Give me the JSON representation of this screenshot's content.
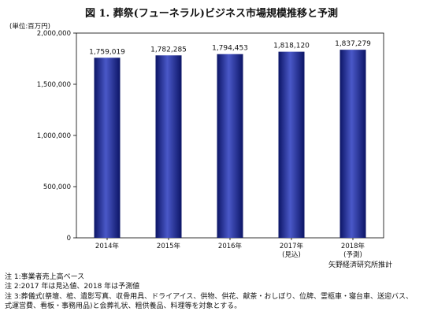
{
  "title": "図 1. 葬祭(フューネラル)ビジネス市場規模推移と予測",
  "unit": "(単位:百万円)",
  "source": "矢野経済研究所推計",
  "notes": [
    "注 1:事業者売上高ベース",
    "注 2:2017 年は見込値、2018 年は予測値",
    "注 3:葬儀式(祭壇、棺、遺影写真、収骨用具、ドライアイス、供物、供花、献茶・おしぼり、位牌、霊柩車・寝台車、送迎バス、",
    "式運営費、看板・事務用品)と会葬礼状、粗供養品、料理等を対象とする。"
  ],
  "colors": {
    "bar": "#1b2a9c",
    "bar_light": "#4a58c8",
    "bar_dark": "#0c1566",
    "axis": "#000000"
  },
  "chart_data": {
    "type": "bar",
    "categories": [
      "2014年",
      "2015年",
      "2016年",
      "2017年",
      "2018年"
    ],
    "sub_labels": [
      "",
      "",
      "",
      "(見込)",
      "(予測)"
    ],
    "values": [
      1759019,
      1782285,
      1794453,
      1818120,
      1837279
    ],
    "value_labels": [
      "1,759,019",
      "1,782,285",
      "1,794,453",
      "1,818,120",
      "1,837,279"
    ],
    "yticks": [
      0,
      500000,
      1000000,
      1500000,
      2000000
    ],
    "ytick_labels": [
      "0",
      "500,000",
      "1,000,000",
      "1,500,000",
      "2,000,000"
    ],
    "ylim": [
      0,
      2000000
    ],
    "grid": false
  }
}
